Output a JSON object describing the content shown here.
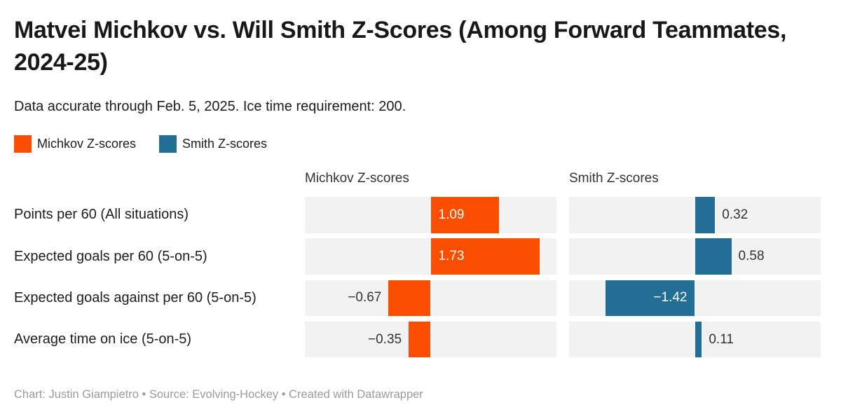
{
  "header": {
    "title": "Matvei Michkov vs. Will Smith Z-Scores (Among Forward Teammates, 2024-25)",
    "subtitle": "Data accurate through Feb. 5, 2025. Ice time requirement: 200."
  },
  "legend": {
    "items": [
      {
        "label": "Michkov Z-scores",
        "color": "#fa4d00"
      },
      {
        "label": "Smith Z-scores",
        "color": "#236e96"
      }
    ]
  },
  "chart_data": {
    "type": "bar",
    "orientation": "horizontal",
    "title": "Matvei Michkov vs. Will Smith Z-Scores (Among Forward Teammates, 2024-25)",
    "subtitle": "Data accurate through Feb. 5, 2025. Ice time requirement: 200.",
    "categories": [
      "Points per 60 (All situations)",
      "Expected goals per 60 (5-on-5)",
      "Expected goals against per 60 (5-on-5)",
      "Average time on ice (5-on-5)"
    ],
    "panel_headers": [
      "Michkov Z-scores",
      "Smith Z-scores"
    ],
    "series": [
      {
        "name": "Michkov Z-scores",
        "color": "#fa4d00",
        "values": [
          1.09,
          1.73,
          -0.67,
          -0.35
        ]
      },
      {
        "name": "Smith Z-scores",
        "color": "#236e96",
        "values": [
          0.32,
          0.58,
          -1.42,
          0.11
        ]
      }
    ],
    "xlim": [
      -2,
      2
    ],
    "grid": "off",
    "legend_position": "top-left",
    "band_color": "#f2f2f2",
    "value_labels": {
      "michkov": [
        "1.09",
        "1.73",
        "−0.67",
        "−0.35"
      ],
      "smith": [
        "0.32",
        "0.58",
        "−1.42",
        "0.11"
      ]
    }
  },
  "footer": {
    "text": "Chart: Justin Giampietro • Source: Evolving-Hockey • Created with Datawrapper"
  }
}
